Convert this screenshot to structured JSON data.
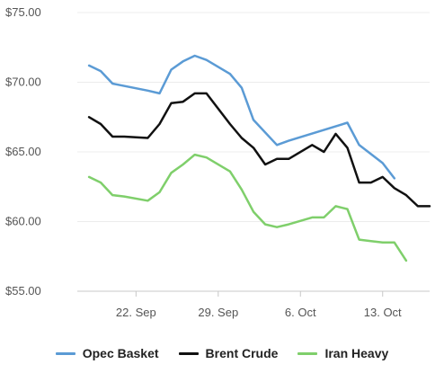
{
  "chart_data": {
    "type": "line",
    "y_ticks": [
      "$75.00",
      "$70.00",
      "$65.00",
      "$60.00",
      "$55.00"
    ],
    "y_tick_values": [
      75,
      70,
      65,
      60,
      55
    ],
    "ylim": [
      55,
      75
    ],
    "x_ticks": [
      "22. Sep",
      "29. Sep",
      "6. Oct",
      "13. Oct"
    ],
    "x_tick_days": [
      22,
      29,
      36,
      43
    ],
    "xlim": [
      17,
      46
    ],
    "grid": "horizontal",
    "legend_position": "bottom",
    "series": [
      {
        "name": "Opec Basket",
        "color": "#5b9bd5",
        "points": [
          [
            18,
            71.2
          ],
          [
            19,
            70.8
          ],
          [
            20,
            69.9
          ],
          [
            23,
            69.4
          ],
          [
            24,
            69.2
          ],
          [
            25,
            70.9
          ],
          [
            26,
            71.5
          ],
          [
            27,
            71.9
          ],
          [
            28,
            71.6
          ],
          [
            30,
            70.6
          ],
          [
            31,
            69.6
          ],
          [
            32,
            67.3
          ],
          [
            34,
            65.5
          ],
          [
            35,
            65.8
          ],
          [
            40,
            67.1
          ],
          [
            41,
            65.5
          ],
          [
            43,
            64.2
          ],
          [
            44,
            63.1
          ]
        ]
      },
      {
        "name": "Brent Crude",
        "color": "#111111",
        "points": [
          [
            18,
            67.5
          ],
          [
            19,
            67.0
          ],
          [
            20,
            66.1
          ],
          [
            21,
            66.1
          ],
          [
            23,
            66.0
          ],
          [
            24,
            67.0
          ],
          [
            25,
            68.5
          ],
          [
            26,
            68.6
          ],
          [
            27,
            69.2
          ],
          [
            28,
            69.2
          ],
          [
            30,
            67.0
          ],
          [
            31,
            66.0
          ],
          [
            32,
            65.3
          ],
          [
            33,
            64.1
          ],
          [
            34,
            64.5
          ],
          [
            35,
            64.5
          ],
          [
            37,
            65.5
          ],
          [
            38,
            65.0
          ],
          [
            39,
            66.3
          ],
          [
            40,
            65.3
          ],
          [
            41,
            62.8
          ],
          [
            42,
            62.8
          ],
          [
            43,
            63.2
          ],
          [
            44,
            62.4
          ],
          [
            45,
            61.9
          ],
          [
            46,
            61.1
          ],
          [
            47,
            61.1
          ]
        ]
      },
      {
        "name": "Iran Heavy",
        "color": "#7fcf6b",
        "points": [
          [
            18,
            63.2
          ],
          [
            19,
            62.8
          ],
          [
            20,
            61.9
          ],
          [
            21,
            61.8
          ],
          [
            23,
            61.5
          ],
          [
            24,
            62.1
          ],
          [
            25,
            63.5
          ],
          [
            26,
            64.1
          ],
          [
            27,
            64.8
          ],
          [
            28,
            64.6
          ],
          [
            30,
            63.6
          ],
          [
            31,
            62.3
          ],
          [
            32,
            60.7
          ],
          [
            33,
            59.8
          ],
          [
            34,
            59.6
          ],
          [
            35,
            59.8
          ],
          [
            37,
            60.3
          ],
          [
            38,
            60.3
          ],
          [
            39,
            61.1
          ],
          [
            40,
            60.9
          ],
          [
            41,
            58.7
          ],
          [
            42,
            58.6
          ],
          [
            43,
            58.5
          ],
          [
            44,
            58.5
          ],
          [
            45,
            57.2
          ]
        ]
      }
    ]
  }
}
